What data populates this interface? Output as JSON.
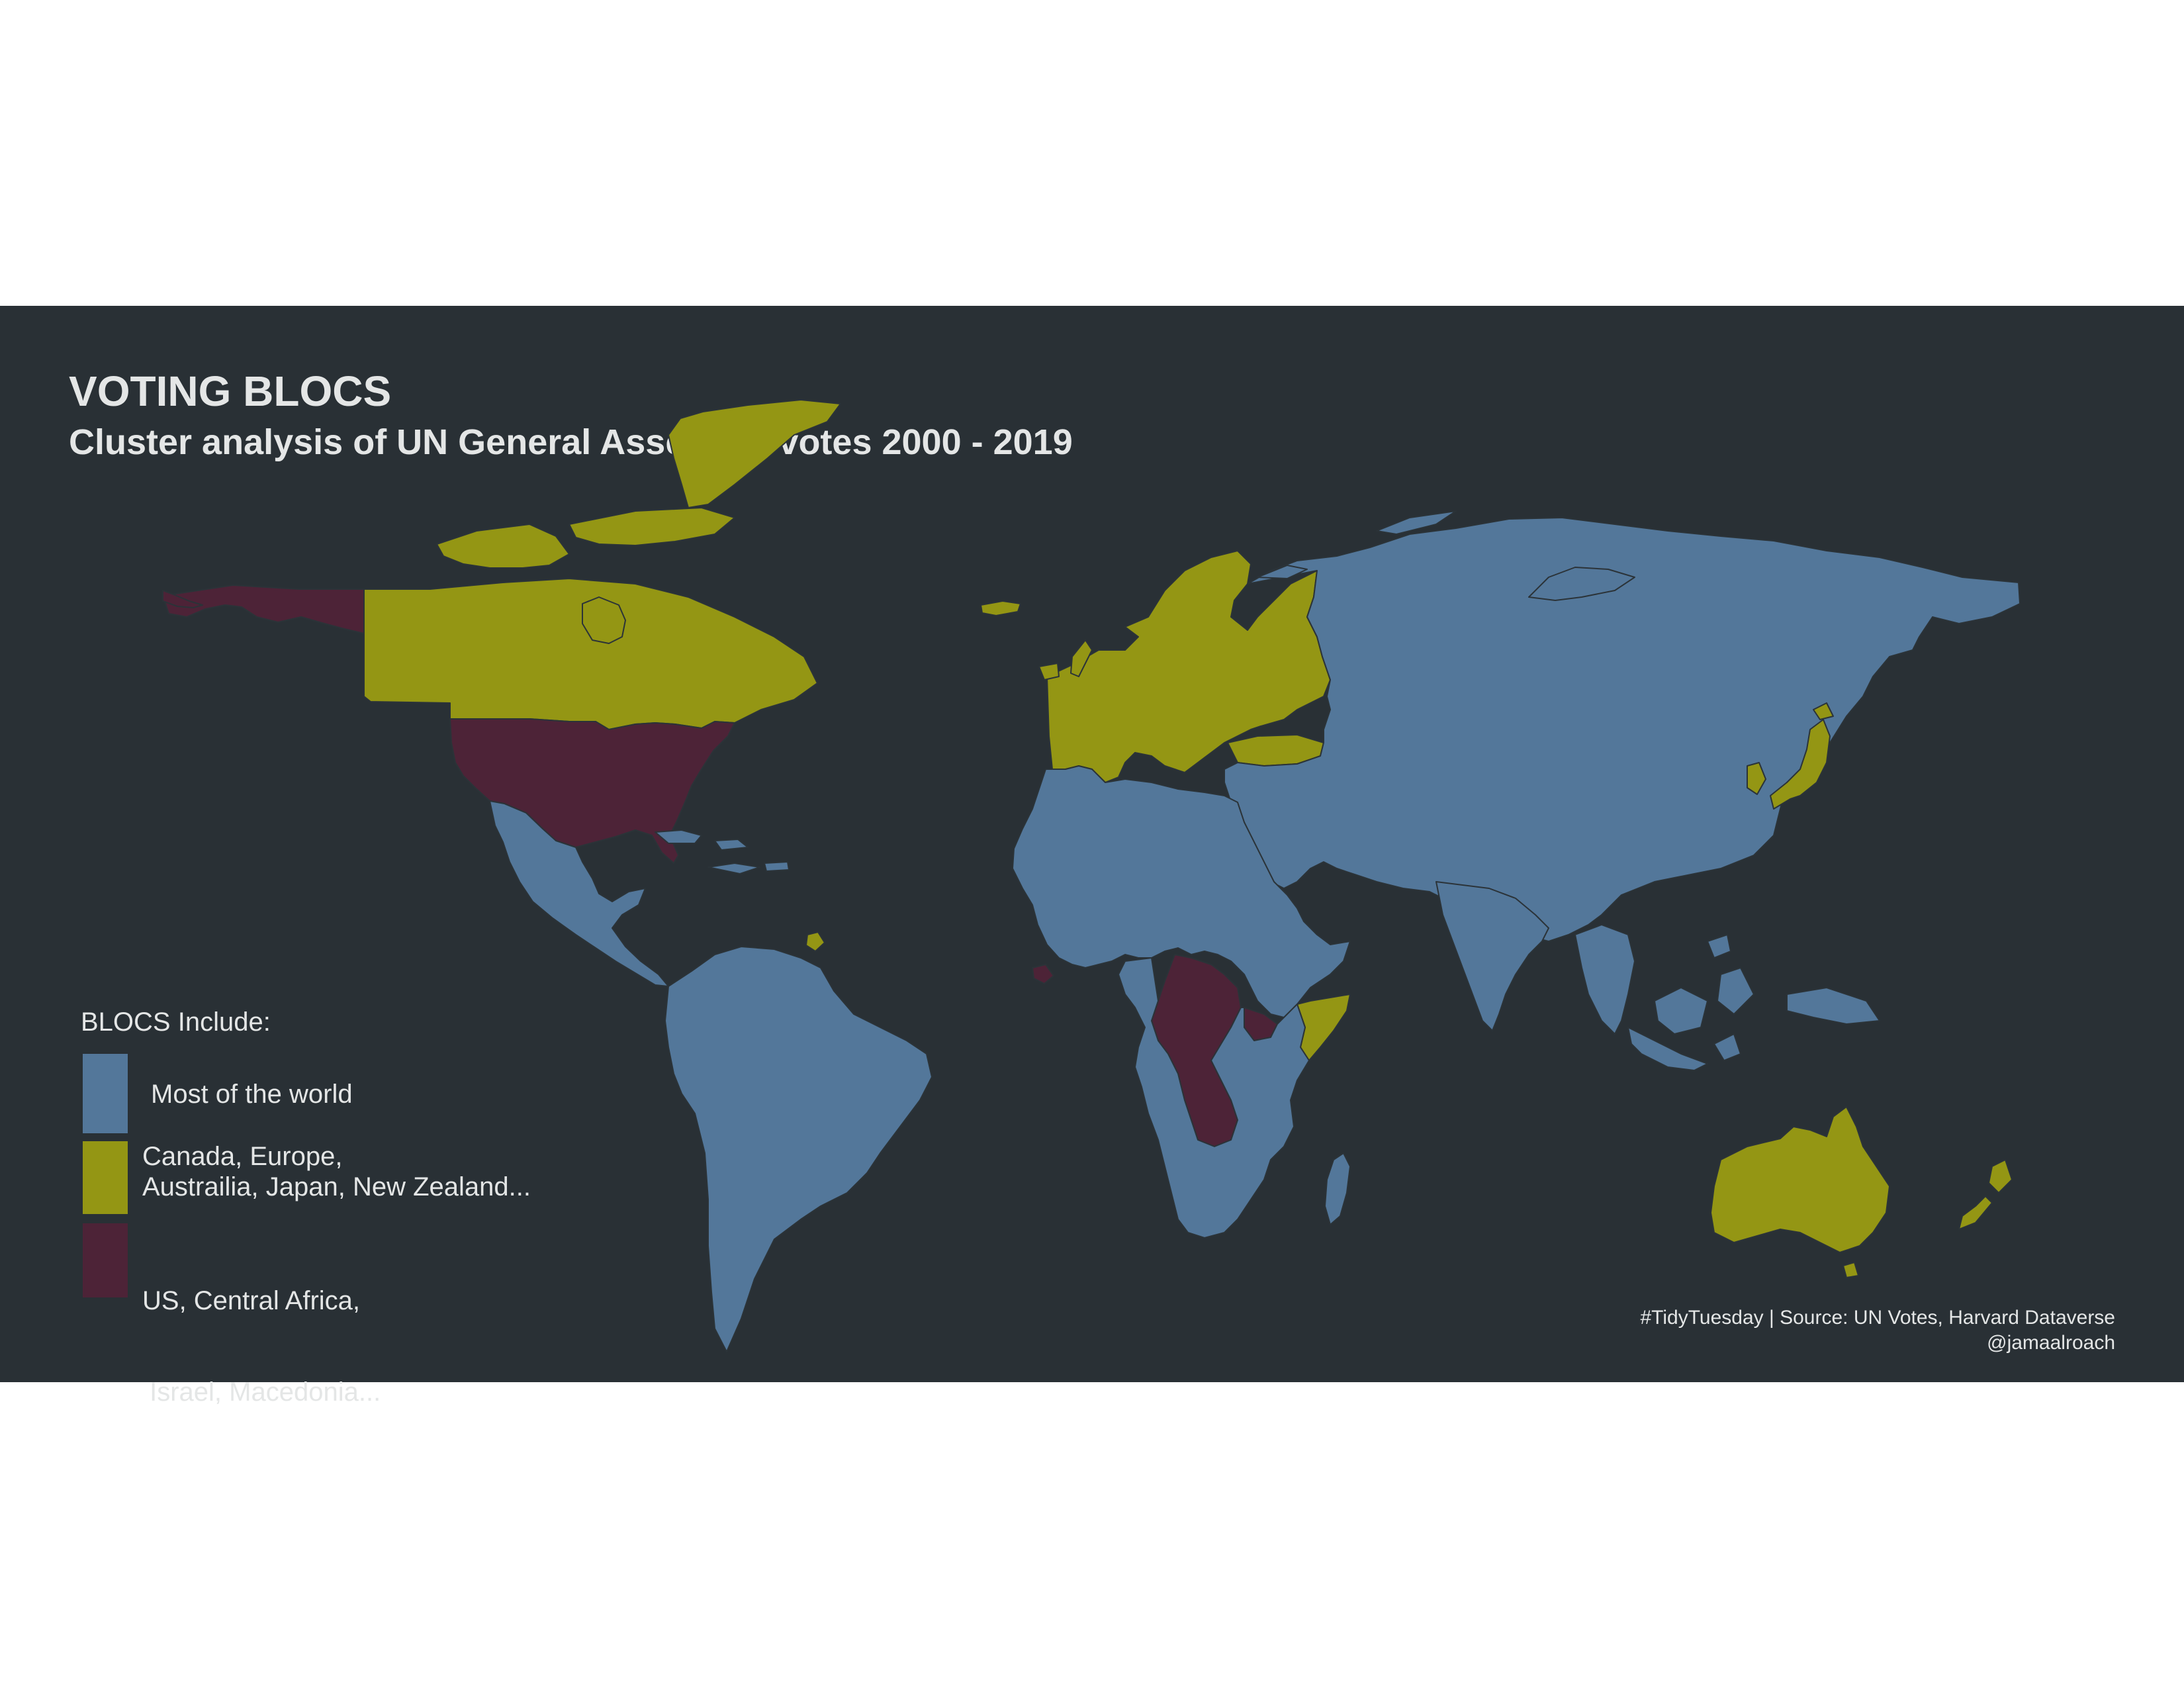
{
  "title": "VOTING BLOCS",
  "subtitle": "Cluster analysis of UN General Assembly votes 2000 - 2019",
  "colors": {
    "page_background": "#ffffff",
    "panel_background": "#293035",
    "text": "#e4e6e6",
    "country_border": "#2b3338",
    "most_of_world": "#53779a",
    "canada_europe": "#949614",
    "us_central_africa": "#4d2337"
  },
  "legend": {
    "title": "BLOCS Include:",
    "items": [
      {
        "id": "most_of_world",
        "line1": "Most of the world",
        "line2": ""
      },
      {
        "id": "canada_europe",
        "line1": "Canada, Europe,",
        "line2": "Austrailia, Japan, New Zealand..."
      },
      {
        "id": "us_central_africa",
        "line1": "US, Central Africa,",
        "line2": " Israel, Macedonia..."
      }
    ]
  },
  "caption": {
    "line1": "#TidyTuesday | Source: UN Votes, Harvard Dataverse",
    "line2": "@jamaalroach"
  },
  "map_data": {
    "type": "choropleth",
    "projection": "equirectangular",
    "regions": [
      {
        "name": "Alaska (US)",
        "bloc": "us_central_africa"
      },
      {
        "name": "Canada",
        "bloc": "canada_europe"
      },
      {
        "name": "United States",
        "bloc": "us_central_africa"
      },
      {
        "name": "Mexico & Central America",
        "bloc": "most_of_world"
      },
      {
        "name": "Caribbean",
        "bloc": "most_of_world"
      },
      {
        "name": "South America",
        "bloc": "most_of_world"
      },
      {
        "name": "French Guiana",
        "bloc": "canada_europe"
      },
      {
        "name": "Greenland",
        "bloc": "canada_europe"
      },
      {
        "name": "Iceland",
        "bloc": "canada_europe"
      },
      {
        "name": "Europe",
        "bloc": "canada_europe"
      },
      {
        "name": "Turkey",
        "bloc": "canada_europe"
      },
      {
        "name": "Russia & Asia",
        "bloc": "most_of_world"
      },
      {
        "name": "Japan",
        "bloc": "canada_europe"
      },
      {
        "name": "South Korea",
        "bloc": "canada_europe"
      },
      {
        "name": "India",
        "bloc": "most_of_world"
      },
      {
        "name": "Southeast Asia & Indonesia",
        "bloc": "most_of_world"
      },
      {
        "name": "North & West Africa",
        "bloc": "most_of_world"
      },
      {
        "name": "Central Africa",
        "bloc": "us_central_africa"
      },
      {
        "name": "Liberia",
        "bloc": "us_central_africa"
      },
      {
        "name": "Somalia",
        "bloc": "canada_europe"
      },
      {
        "name": "Southern & East Africa",
        "bloc": "most_of_world"
      },
      {
        "name": "Madagascar",
        "bloc": "most_of_world"
      },
      {
        "name": "Australia",
        "bloc": "canada_europe"
      },
      {
        "name": "New Zealand",
        "bloc": "canada_europe"
      }
    ]
  }
}
